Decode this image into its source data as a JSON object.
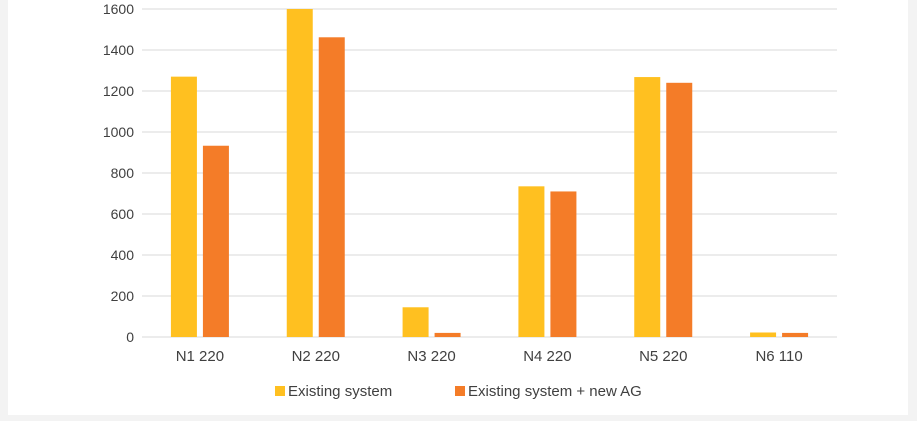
{
  "colors": {
    "background": "#ffffff",
    "outer_background": "#f3f3f3",
    "gridline": "#d9d9d9",
    "text": "#404040",
    "series_1": "#ffc020",
    "series_2": "#f47c28"
  },
  "chart_data": {
    "type": "bar",
    "title": "",
    "xlabel": "",
    "ylabel": "",
    "ylim": [
      0,
      1600
    ],
    "yticks": [
      0,
      200,
      400,
      600,
      800,
      1000,
      1200,
      1400,
      1600
    ],
    "ytick_labels": [
      "0",
      "200",
      "400",
      "600",
      "800",
      "1000",
      "1200",
      "1400",
      "1600"
    ],
    "grid": true,
    "legend_position": "bottom",
    "categories": [
      "N1 220",
      "N2 220",
      "N3 220",
      "N4 220",
      "N5 220",
      "N6 110"
    ],
    "series": [
      {
        "name": "Existing system",
        "color": "#ffc020",
        "values": [
          1270,
          1600,
          145,
          735,
          1268,
          22
        ]
      },
      {
        "name": "Existing system + new AG",
        "color": "#f47c28",
        "values": [
          933,
          1462,
          20,
          710,
          1240,
          20
        ]
      }
    ]
  }
}
